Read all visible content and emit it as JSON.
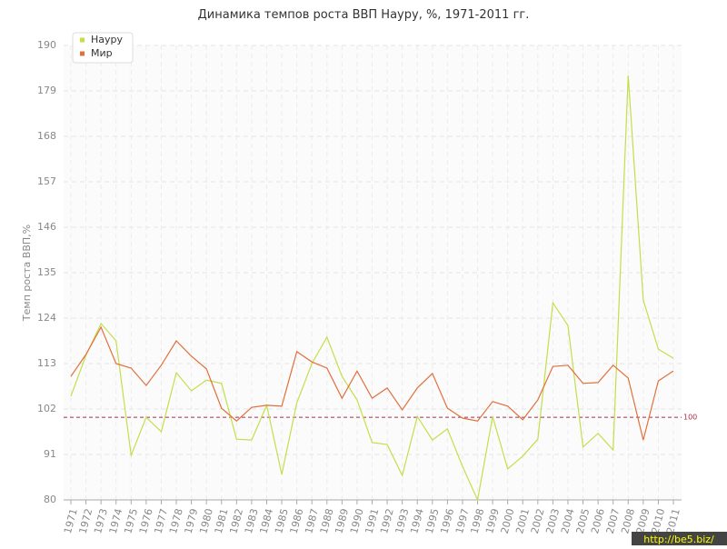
{
  "chart_data": {
    "type": "line",
    "title": "Динамика темпов роста ВВП Науру, %, 1971-2011 гг.",
    "y_label": "Темп роста ВВП,%",
    "x": [
      1971,
      1972,
      1973,
      1974,
      1975,
      1976,
      1977,
      1978,
      1979,
      1980,
      1981,
      1982,
      1983,
      1984,
      1985,
      1986,
      1987,
      1988,
      1989,
      1990,
      1991,
      1992,
      1993,
      1994,
      1995,
      1996,
      1997,
      1998,
      1999,
      2000,
      2001,
      2002,
      2003,
      2004,
      2005,
      2006,
      2007,
      2008,
      2009,
      2010,
      2011
    ],
    "xlim": [
      1971,
      2011
    ],
    "series": [
      {
        "name": "Науру",
        "color": "#c2df4a",
        "values": [
          105.1,
          115,
          122.7,
          118.5,
          90.8,
          100,
          96.5,
          110.8,
          106.4,
          109,
          108.2,
          94.7,
          94.5,
          102.9,
          86.2,
          103.5,
          113,
          119.4,
          109.9,
          104.2,
          93.9,
          93.4,
          85.9,
          100.2,
          94.5,
          97.2,
          88.1,
          80,
          100.2,
          87.5,
          90.6,
          94.7,
          127.7,
          122.2,
          92.8,
          96.1,
          92.1,
          182.7,
          128.4,
          116.5,
          114.3
        ]
      },
      {
        "name": "Мир",
        "color": "#e0703c",
        "values": [
          109.9,
          115.2,
          121.8,
          113,
          111.9,
          107.7,
          112.6,
          118.5,
          114.8,
          111.7,
          102.2,
          99.1,
          102.4,
          102.9,
          102.7,
          115.9,
          113.4,
          111.9,
          104.6,
          111.2,
          104.6,
          107.1,
          101.8,
          107.1,
          110.6,
          102.2,
          99.8,
          99.1,
          103.8,
          102.7,
          99.4,
          104.2,
          112.3,
          112.6,
          108.2,
          108.4,
          112.6,
          109.5,
          94.5,
          108.8,
          111.2
        ]
      }
    ],
    "ylim": [
      80,
      190
    ],
    "yticks": [
      80,
      91,
      102,
      113,
      124,
      135,
      146,
      157,
      168,
      179,
      190
    ],
    "reference_line": {
      "value": 100,
      "color": "#a0304a"
    },
    "grid": true,
    "legend": "top-left",
    "watermark": "http://be5.biz/"
  }
}
